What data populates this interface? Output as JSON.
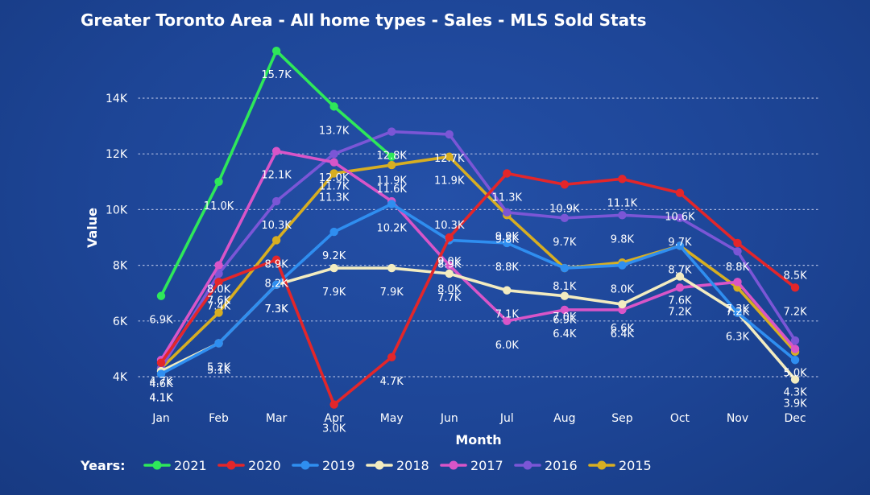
{
  "chart_data": {
    "type": "line",
    "title": "Greater Toronto Area - All home types - Sales - MLS Sold Stats",
    "xlabel": "Month",
    "ylabel": "Value",
    "categories": [
      "Jan",
      "Feb",
      "Mar",
      "Apr",
      "May",
      "Jun",
      "Jul",
      "Aug",
      "Sep",
      "Oct",
      "Nov",
      "Dec"
    ],
    "y_ticks": [
      "4K",
      "6K",
      "8K",
      "10K",
      "12K",
      "14K"
    ],
    "ylim": [
      3000,
      15700
    ],
    "grid": "horizontal dotted",
    "legend_title": "Years:",
    "legend_position": "bottom",
    "series": [
      {
        "name": "2021",
        "color": "#2ee85a",
        "values": [
          6900,
          11000,
          15700,
          13700,
          11900,
          null,
          null,
          null,
          null,
          null,
          null,
          null
        ]
      },
      {
        "name": "2020",
        "color": "#e3262a",
        "values": [
          4500,
          7400,
          8200,
          3000,
          4700,
          9000,
          11300,
          10900,
          11100,
          10600,
          8800,
          7200
        ]
      },
      {
        "name": "2019",
        "color": "#2f8ef0",
        "values": [
          4100,
          5200,
          7300,
          9200,
          10200,
          8900,
          8800,
          7900,
          8000,
          8700,
          6300,
          4600
        ]
      },
      {
        "name": "2018",
        "color": "#f3ecc0",
        "values": [
          4200,
          5200,
          7300,
          7900,
          7900,
          7700,
          7100,
          6900,
          6600,
          7600,
          6300,
          3900
        ]
      },
      {
        "name": "2017",
        "color": "#d855c8",
        "values": [
          4600,
          8000,
          12100,
          11700,
          10300,
          8000,
          6000,
          6400,
          6400,
          7200,
          7400,
          5000
        ]
      },
      {
        "name": "2016",
        "color": "#7b56d6",
        "values": [
          4300,
          7700,
          10300,
          12000,
          12800,
          12700,
          9900,
          9700,
          9800,
          9700,
          8500,
          5300
        ]
      },
      {
        "name": "2015",
        "color": "#d7ae22",
        "values": [
          4300,
          6300,
          8900,
          11300,
          11600,
          11900,
          9800,
          7900,
          8100,
          8700,
          7200,
          4900
        ]
      }
    ],
    "data_labels": [
      {
        "text": "15.7K",
        "month": "Mar",
        "value": 15700
      },
      {
        "text": "13.7K",
        "month": "Apr",
        "value": 13700
      },
      {
        "text": "12.8K",
        "month": "May",
        "value": 12800
      },
      {
        "text": "12.7K",
        "month": "Jun",
        "value": 12700
      },
      {
        "text": "12.1K",
        "month": "Mar",
        "value": 12100
      },
      {
        "text": "11.7K",
        "month": "Apr",
        "value": 11700
      },
      {
        "text": "11.6K",
        "month": "May",
        "value": 11600
      },
      {
        "text": "11.9K",
        "month": "Jun",
        "value": 11900
      },
      {
        "text": "11.0K",
        "month": "Feb",
        "value": 11000
      },
      {
        "text": "11.3K",
        "month": "Jul",
        "value": 11300
      },
      {
        "text": "11.1K",
        "month": "Sep",
        "value": 11100
      },
      {
        "text": "10.6K",
        "month": "Oct",
        "value": 10600
      },
      {
        "text": "10.3K",
        "month": "Mar",
        "value": 10300
      },
      {
        "text": "12.0K",
        "month": "Apr",
        "value": 12000
      },
      {
        "text": "11.9K",
        "month": "May",
        "value": 11900
      },
      {
        "text": "9.9K",
        "month": "Jul",
        "value": 9900
      },
      {
        "text": "10.9K",
        "month": "Aug",
        "value": 10900
      },
      {
        "text": "9.8K",
        "month": "Sep",
        "value": 9800
      },
      {
        "text": "9.7K",
        "month": "Oct",
        "value": 9700
      },
      {
        "text": "11.3K",
        "month": "Apr",
        "value": 11300
      },
      {
        "text": "8.9K",
        "month": "Mar",
        "value": 8900
      },
      {
        "text": "9.2K",
        "month": "Apr",
        "value": 9200
      },
      {
        "text": "10.2K",
        "month": "May",
        "value": 10200
      },
      {
        "text": "10.3K",
        "month": "Jun",
        "value": 10300
      },
      {
        "text": "8.9K",
        "month": "Jun",
        "value": 8900
      },
      {
        "text": "8.8K",
        "month": "Jul",
        "value": 8800
      },
      {
        "text": "9.7K",
        "month": "Aug",
        "value": 9700
      },
      {
        "text": "8.8K",
        "month": "Nov",
        "value": 8800
      },
      {
        "text": "8.0K",
        "month": "Feb",
        "value": 8000
      },
      {
        "text": "7.4K",
        "month": "Feb",
        "value": 7400
      },
      {
        "text": "8.2K",
        "month": "Mar",
        "value": 8200
      },
      {
        "text": "7.9K",
        "month": "Apr",
        "value": 7900
      },
      {
        "text": "7.9K",
        "month": "May",
        "value": 7900
      },
      {
        "text": "8.0K",
        "month": "Jun",
        "value": 8000
      },
      {
        "text": "9.8K",
        "month": "Jul",
        "value": 9800
      },
      {
        "text": "8.0K",
        "month": "Sep",
        "value": 8000
      },
      {
        "text": "8.7K",
        "month": "Oct",
        "value": 8700
      },
      {
        "text": "8.5K",
        "month": "Dec",
        "value": 8500
      },
      {
        "text": "7.3K",
        "month": "Mar",
        "value": 7300
      },
      {
        "text": "9.0K",
        "month": "Jun",
        "value": 9000
      },
      {
        "text": "7.1K",
        "month": "Jul",
        "value": 7100
      },
      {
        "text": "8.1K",
        "month": "Aug",
        "value": 8100
      },
      {
        "text": "7.6K",
        "month": "Oct",
        "value": 7600
      },
      {
        "text": "7.2K",
        "month": "Nov",
        "value": 7200
      },
      {
        "text": "7.6K",
        "month": "Feb",
        "value": 7600
      },
      {
        "text": "6.9K",
        "month": "Aug",
        "value": 6900
      },
      {
        "text": "7.0K",
        "month": "Aug",
        "value": 7000
      },
      {
        "text": "6.4K",
        "month": "Sep",
        "value": 6400
      },
      {
        "text": "6.3K",
        "month": "Nov",
        "value": 6300
      },
      {
        "text": "7.3K",
        "month": "Mar",
        "value": 7300
      },
      {
        "text": "7.7K",
        "month": "Jun",
        "value": 7700
      },
      {
        "text": "6.9K",
        "month": "Jan",
        "value": 6900
      },
      {
        "text": "5.1K",
        "month": "Feb",
        "value": 5100
      },
      {
        "text": "7.2K",
        "month": "Oct",
        "value": 7200
      },
      {
        "text": "7.3K",
        "month": "Nov",
        "value": 7300
      },
      {
        "text": "7.2K",
        "month": "Dec",
        "value": 7200
      },
      {
        "text": "4.6K",
        "month": "Jan",
        "value": 4600
      },
      {
        "text": "6.0K",
        "month": "Jul",
        "value": 6000
      },
      {
        "text": "6.4K",
        "month": "Aug",
        "value": 6400
      },
      {
        "text": "6.6K",
        "month": "Sep",
        "value": 6600
      },
      {
        "text": "5.0K",
        "month": "Dec",
        "value": 5000
      },
      {
        "text": "4.1K",
        "month": "Jan",
        "value": 4100
      },
      {
        "text": "5.2K",
        "month": "Feb",
        "value": 5200
      },
      {
        "text": "4.7K",
        "month": "May",
        "value": 4700
      },
      {
        "text": "3.9K",
        "month": "Dec",
        "value": 3900
      },
      {
        "text": "4.7K",
        "month": "Jan",
        "value": 4700
      },
      {
        "text": "3.0K",
        "month": "Apr",
        "value": 3000
      },
      {
        "text": "4.3K",
        "month": "Dec",
        "value": 4300
      },
      {
        "text": "4.1K",
        "month": "Jan",
        "value": 4100
      }
    ]
  }
}
